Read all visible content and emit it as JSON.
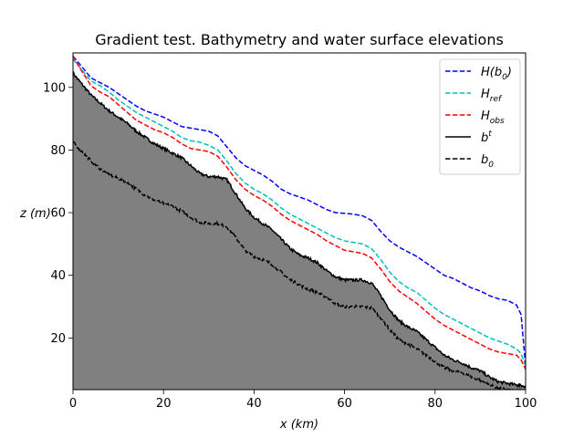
{
  "chart_data": {
    "type": "line",
    "title": "Gradient test. Bathymetry and water surface elevations",
    "xlabel": "x (km)",
    "ylabel": "z (m)",
    "xlim": [
      0,
      100
    ],
    "ylim": [
      3.5,
      111
    ],
    "xticks": [
      0,
      20,
      40,
      60,
      80,
      100
    ],
    "yticks": [
      20,
      40,
      60,
      80,
      100
    ],
    "grid": false,
    "legend_position": "top-right",
    "fill_below": "b^t",
    "fill_color": "#808080",
    "series": [
      {
        "name": "H(b_0)",
        "legend_html": "<tspan>H(b</tspan><tspan dy=\"4\" font-size=\"9\">0</tspan><tspan dy=\"-4\">)</tspan>",
        "color": "#0000ff",
        "dash": "dashed",
        "x": [
          0,
          2,
          4,
          6,
          8,
          10,
          12,
          14,
          16,
          18,
          20,
          22,
          24,
          26,
          28,
          30,
          32,
          34,
          36,
          38,
          40,
          42,
          44,
          46,
          48,
          50,
          52,
          54,
          56,
          58,
          60,
          62,
          64,
          66,
          68,
          70,
          72,
          74,
          76,
          78,
          80,
          82,
          84,
          86,
          88,
          90,
          92,
          94,
          96,
          98,
          99,
          100
        ],
        "y": [
          110,
          106.5,
          103,
          101.5,
          100,
          98,
          96,
          94,
          92.5,
          91.5,
          90.5,
          89,
          87.5,
          87,
          86.5,
          86,
          84.5,
          81,
          77.5,
          75,
          73.5,
          72,
          70,
          67.5,
          66,
          65,
          64,
          62.5,
          61,
          60,
          59.8,
          59.5,
          59,
          57.5,
          54,
          51,
          49,
          47.5,
          46,
          44,
          42,
          40,
          39,
          37.5,
          36,
          35,
          33.5,
          32.5,
          32,
          30.5,
          27.5,
          11
        ]
      },
      {
        "name": "H_ref",
        "legend_html": "<tspan>H</tspan><tspan dy=\"4\" font-size=\"9\">ref</tspan>",
        "color": "#00bfbf",
        "dash": "dashed",
        "x": [
          0,
          2,
          4,
          6,
          8,
          10,
          12,
          14,
          16,
          18,
          20,
          22,
          24,
          26,
          28,
          30,
          32,
          34,
          36,
          38,
          40,
          42,
          44,
          46,
          48,
          50,
          52,
          54,
          56,
          58,
          60,
          62,
          64,
          66,
          68,
          70,
          72,
          74,
          76,
          78,
          80,
          82,
          84,
          86,
          88,
          90,
          92,
          94,
          96,
          98,
          99,
          100
        ],
        "y": [
          109,
          105.5,
          102,
          100.5,
          98.5,
          96,
          94,
          92,
          90.5,
          89,
          87.5,
          86,
          84,
          83,
          82.5,
          81.5,
          80,
          76.5,
          72.5,
          69.5,
          67.5,
          66,
          64,
          61.5,
          59.5,
          58,
          56.5,
          55,
          53.5,
          52,
          51,
          50.5,
          50,
          48.5,
          45,
          41,
          38,
          36,
          34.5,
          32,
          29.5,
          27.5,
          26,
          24.5,
          23,
          21.5,
          20,
          19,
          18,
          16.5,
          15,
          11
        ]
      },
      {
        "name": "H_obs",
        "legend_html": "<tspan>H</tspan><tspan dy=\"4\" font-size=\"9\">obs</tspan>",
        "color": "#ff0000",
        "dash": "dashed",
        "x": [
          0,
          2,
          4,
          6,
          8,
          10,
          12,
          14,
          16,
          18,
          20,
          22,
          24,
          26,
          28,
          30,
          32,
          34,
          36,
          38,
          40,
          42,
          44,
          46,
          48,
          50,
          52,
          54,
          56,
          58,
          60,
          62,
          64,
          66,
          68,
          70,
          72,
          74,
          76,
          78,
          80,
          82,
          84,
          86,
          88,
          90,
          92,
          94,
          96,
          98,
          99,
          100
        ],
        "y": [
          110,
          105,
          100.5,
          98.5,
          97,
          94.5,
          92,
          89.5,
          88,
          86.5,
          85.5,
          84,
          82,
          80.5,
          80,
          79.5,
          78,
          74.5,
          70.5,
          67.5,
          65.5,
          64,
          62,
          59.5,
          57.5,
          56,
          54.5,
          53,
          51,
          49.5,
          48,
          47.5,
          47,
          45.5,
          42,
          38,
          35,
          33,
          31,
          28.5,
          26,
          24,
          22.5,
          21,
          19.5,
          18,
          16.5,
          15.5,
          15,
          14.5,
          13,
          10
        ]
      },
      {
        "name": "b^t",
        "legend_html": "<tspan>b</tspan><tspan dy=\"-6\" font-size=\"9\">t</tspan>",
        "color": "#000000",
        "dash": "solid",
        "x": [
          0,
          2,
          4,
          6,
          8,
          10,
          12,
          14,
          16,
          18,
          20,
          22,
          24,
          26,
          28,
          30,
          32,
          34,
          36,
          38,
          40,
          42,
          44,
          46,
          48,
          50,
          52,
          54,
          56,
          58,
          60,
          62,
          64,
          66,
          68,
          70,
          72,
          74,
          76,
          78,
          80,
          82,
          84,
          86,
          88,
          90,
          92,
          94,
          96,
          98,
          99,
          100
        ],
        "y": [
          104.5,
          101,
          97.5,
          95,
          92.5,
          90.5,
          88.5,
          86,
          84,
          82,
          80.5,
          79,
          77.5,
          75,
          72.5,
          71.5,
          71.5,
          70.5,
          66,
          61.5,
          58.5,
          56.5,
          54.5,
          51.5,
          48.5,
          46.5,
          45.5,
          44,
          41.5,
          39.5,
          38.5,
          38.5,
          38.5,
          37.5,
          33.5,
          29,
          25.5,
          23.5,
          22,
          19.5,
          17,
          14.5,
          13,
          12,
          10.5,
          9.5,
          7.5,
          6,
          5.5,
          5,
          5,
          4
        ]
      },
      {
        "name": "b_0",
        "legend_html": "<tspan>b</tspan><tspan dy=\"4\" font-size=\"9\">0</tspan>",
        "color": "#000000",
        "dash": "dashed",
        "x": [
          0,
          2,
          4,
          6,
          8,
          10,
          12,
          14,
          16,
          18,
          20,
          22,
          24,
          26,
          28,
          30,
          32,
          34,
          36,
          38,
          40,
          42,
          44,
          46,
          48,
          50,
          52,
          54,
          56,
          58,
          60,
          62,
          64,
          66,
          68,
          70,
          72,
          74,
          76,
          78,
          80,
          82,
          84,
          86,
          88,
          90,
          92,
          94,
          96,
          98,
          99,
          100
        ],
        "y": [
          82.5,
          79.5,
          76.5,
          74,
          72,
          71,
          69.5,
          67.5,
          65.5,
          64,
          63,
          62,
          60.5,
          58.5,
          57,
          56.5,
          56.5,
          55.5,
          52,
          48,
          46,
          45,
          43.5,
          41,
          38.5,
          37,
          35.5,
          34.5,
          33,
          31,
          30,
          30,
          30,
          29.5,
          26.5,
          22.5,
          19.5,
          18,
          16.5,
          14.5,
          12.5,
          10.5,
          9.5,
          9,
          7.5,
          6.5,
          5,
          4,
          3.5,
          3,
          3,
          3
        ]
      }
    ]
  }
}
